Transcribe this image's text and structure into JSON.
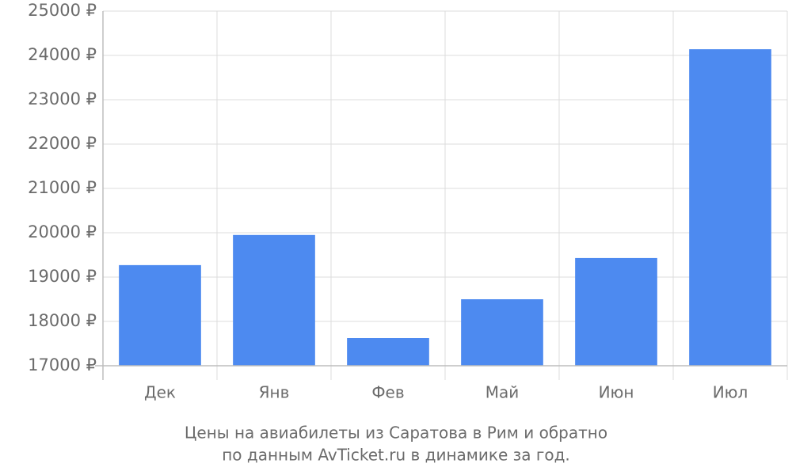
{
  "chart_data": {
    "type": "bar",
    "title": "Цены на авиабилеты из Саратова в Рим и обратно",
    "subtitle": "по данным AvTicket.ru в динамике за год.",
    "categories": [
      "Дек",
      "Янв",
      "Фев",
      "Май",
      "Июн",
      "Июл"
    ],
    "values": [
      19270,
      19950,
      17625,
      18500,
      19430,
      24140
    ],
    "color": "#4d8af0",
    "ylim": [
      17000,
      25000
    ],
    "yticks": [
      {
        "value": 17000,
        "label": "17000 ₽"
      },
      {
        "value": 18000,
        "label": "18000 ₽"
      },
      {
        "value": 19000,
        "label": "19000 ₽"
      },
      {
        "value": 20000,
        "label": "20000 ₽"
      },
      {
        "value": 21000,
        "label": "21000 ₽"
      },
      {
        "value": 22000,
        "label": "22000 ₽"
      },
      {
        "value": 23000,
        "label": "23000 ₽"
      },
      {
        "value": 24000,
        "label": "24000 ₽"
      },
      {
        "value": 25000,
        "label": "25000 ₽"
      }
    ],
    "grid": true
  }
}
